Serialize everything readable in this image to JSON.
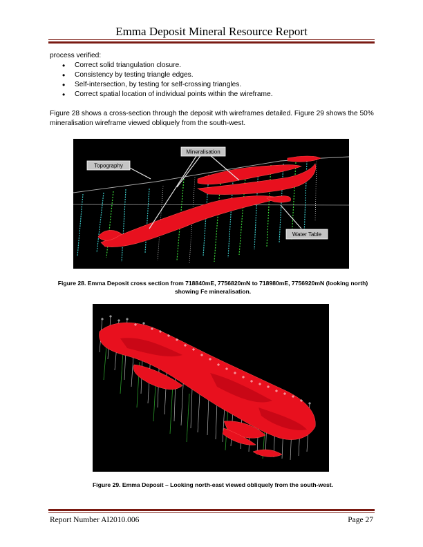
{
  "header": {
    "title": "Emma Deposit Mineral Resource Report"
  },
  "body": {
    "intro": "process verified:",
    "bullets": [
      "Correct solid triangulation closure.",
      "Consistency by testing triangle edges.",
      "Self-intersection, by testing for self-crossing triangles.",
      "Correct spatial location of individual points within the wireframe."
    ],
    "paragraph": "Figure 28 shows a cross-section through the deposit with wireframes detailed.  Figure 29 shows the 50% mineralisation wireframe viewed obliquely from the south-west."
  },
  "figure28": {
    "callouts": {
      "mineralisation": "Mineralisation",
      "topography": "Topography",
      "water_table": "Water Table"
    },
    "caption": "Figure 28. Emma Deposit cross section from 718840mE, 7756820mN to 718980mE, 7756920mN (looking north) showing Fe mineralisation."
  },
  "figure29": {
    "caption": "Figure 29. Emma Deposit – Looking north-east viewed obliquely from the south-west."
  },
  "footer": {
    "report_number": "Report Number AI2010.006",
    "page": "Page 27"
  },
  "colors": {
    "rule": "#7a1a12",
    "mineralisation": "#e8101e",
    "drillhole_a": "#3cc8c8",
    "drillhole_b": "#3ce03c"
  }
}
